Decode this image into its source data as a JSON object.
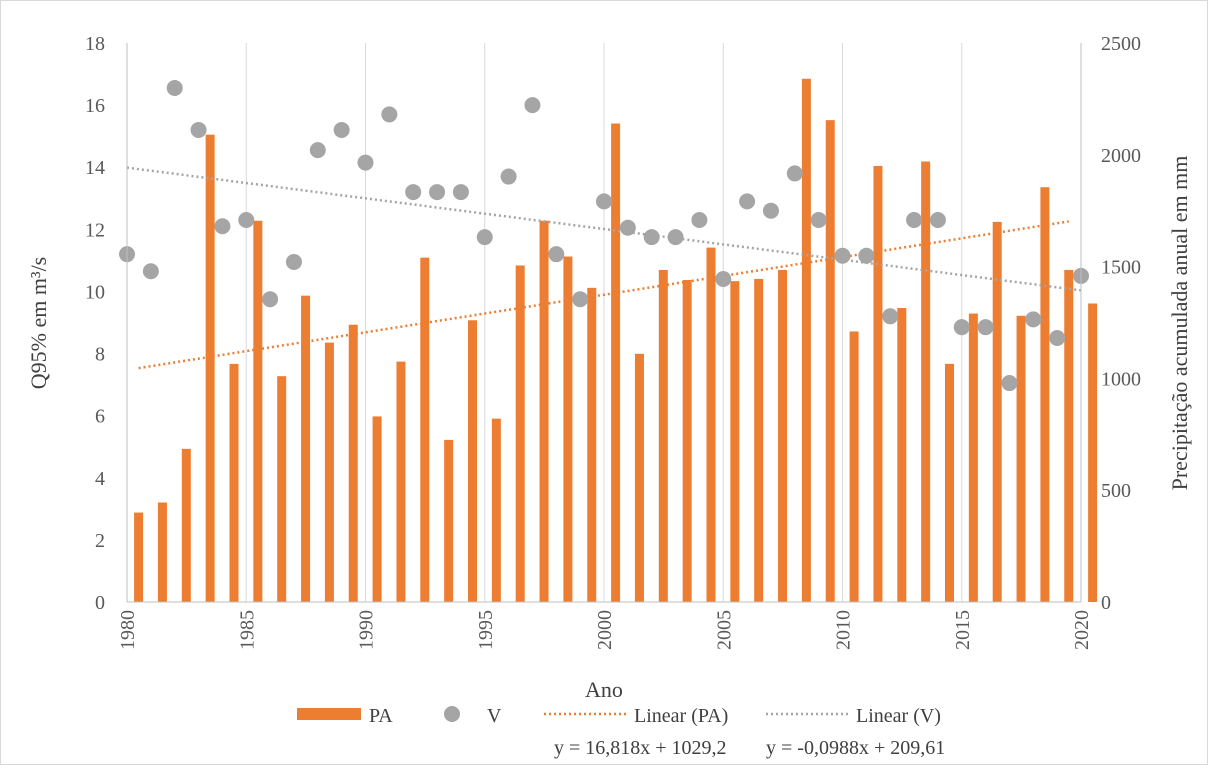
{
  "chart_data": {
    "type": "bar",
    "x_label": "Ano",
    "y_left_label": "Q95% em m³/s",
    "y_right_label": "Precipitação acumulada anual em mm",
    "y_left_lim": [
      0,
      18
    ],
    "y_right_lim": [
      0,
      2500
    ],
    "y_left_ticks": [
      0,
      2,
      4,
      6,
      8,
      10,
      12,
      14,
      16,
      18
    ],
    "y_right_ticks": [
      0,
      500,
      1000,
      1500,
      2000,
      2500
    ],
    "x_ticks": [
      1980,
      1985,
      1990,
      1995,
      2000,
      2005,
      2010,
      2015,
      2020
    ],
    "grid": "vertical",
    "legend_position": "bottom",
    "colors": {
      "pa": "#ED7D31",
      "v": "#A5A5A5"
    },
    "years": [
      1980,
      1981,
      1982,
      1983,
      1984,
      1985,
      1986,
      1987,
      1988,
      1989,
      1990,
      1991,
      1992,
      1993,
      1994,
      1995,
      1996,
      1997,
      1998,
      1999,
      2000,
      2001,
      2002,
      2003,
      2004,
      2005,
      2006,
      2007,
      2008,
      2009,
      2010,
      2011,
      2012,
      2013,
      2014,
      2015,
      2016,
      2017,
      2018,
      2019,
      2020
    ],
    "series": [
      {
        "name": "PA",
        "type": "bar",
        "axis": "right",
        "values": [
          400,
          445,
          685,
          2090,
          1065,
          1705,
          1010,
          1370,
          1160,
          1240,
          830,
          1075,
          1540,
          725,
          1260,
          820,
          1505,
          1705,
          1545,
          1405,
          2140,
          1110,
          1485,
          1440,
          1585,
          1435,
          1445,
          1485,
          2340,
          2155,
          1210,
          1950,
          1315,
          1970,
          1065,
          1290,
          1700,
          1280,
          1855,
          1485,
          1335
        ]
      },
      {
        "name": "V",
        "type": "scatter",
        "axis": "left",
        "values": [
          11.2,
          10.65,
          16.55,
          15.2,
          12.1,
          12.3,
          9.75,
          10.95,
          14.55,
          15.2,
          14.15,
          15.7,
          13.2,
          13.2,
          13.2,
          11.75,
          13.7,
          16.0,
          11.2,
          9.75,
          12.9,
          12.05,
          11.75,
          11.75,
          12.3,
          10.4,
          12.9,
          12.6,
          13.8,
          12.3,
          11.15,
          11.15,
          9.2,
          12.3,
          12.3,
          8.85,
          8.85,
          7.05,
          9.1,
          8.5,
          10.5
        ]
      },
      {
        "name": "Linear (PA)",
        "type": "trendline",
        "axis": "right",
        "slope": 16.818,
        "intercept": 1029.2
      },
      {
        "name": "Linear (V)",
        "type": "trendline",
        "axis": "left",
        "slope": -0.0988,
        "intercept": 209.61
      }
    ],
    "equations": [
      "y = 16,818x + 1029,2",
      "y = -0,0988x + 209,61"
    ]
  }
}
